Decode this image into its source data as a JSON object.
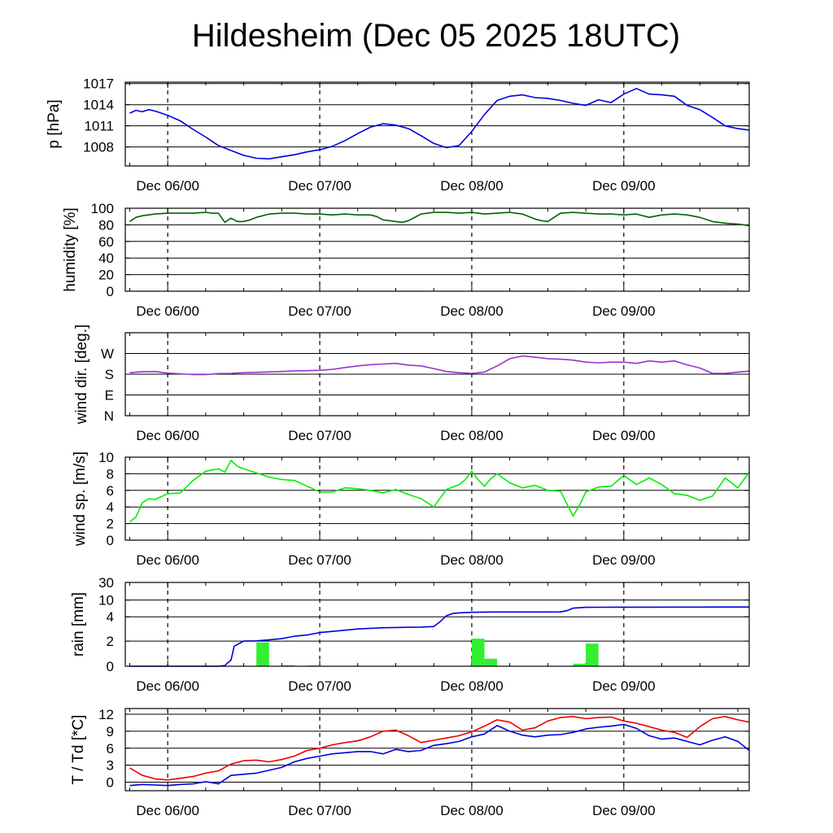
{
  "title": "Hildesheim (Dec 05 2025 18UTC)",
  "x_ticks": [
    "Dec 06/00",
    "Dec 07/00",
    "Dec 08/00",
    "Dec 09/00"
  ],
  "chart_data": [
    {
      "id": "pressure",
      "type": "line",
      "ylabel": "p [hPa]",
      "ylim": [
        1005.3,
        1017.2
      ],
      "yticks": [
        1008,
        1011,
        1014,
        1017
      ],
      "ytick_labels": [
        "1008",
        "1011",
        "1014",
        "1017"
      ],
      "x_hours": [
        -6,
        -5,
        -4,
        -3,
        -2,
        0,
        2,
        4,
        6,
        8,
        10,
        12,
        14,
        16,
        18,
        20,
        22,
        24,
        26,
        28,
        30,
        32,
        34,
        36,
        38,
        40,
        42,
        44,
        46,
        48,
        50,
        52,
        54,
        56,
        58,
        60,
        62,
        64,
        66,
        68,
        70,
        72,
        74,
        76,
        78,
        80,
        82,
        84,
        86,
        88,
        90,
        91.8
      ],
      "series": [
        {
          "name": "p",
          "color": "#0000dd",
          "values": [
            1012.8,
            1013.2,
            1013.0,
            1013.3,
            1013.1,
            1012.5,
            1011.7,
            1010.5,
            1009.4,
            1008.2,
            1007.5,
            1006.8,
            1006.4,
            1006.3,
            1006.6,
            1006.9,
            1007.3,
            1007.6,
            1008.1,
            1008.9,
            1009.9,
            1010.8,
            1011.3,
            1011.1,
            1010.6,
            1009.6,
            1008.5,
            1007.9,
            1008.2,
            1010.2,
            1012.6,
            1014.6,
            1015.2,
            1015.4,
            1015.0,
            1014.9,
            1014.6,
            1014.2,
            1013.9,
            1014.7,
            1014.3,
            1015.5,
            1016.3,
            1015.5,
            1015.4,
            1015.2,
            1013.9,
            1013.3,
            1012.2,
            1011.0,
            1010.6,
            1010.4
          ]
        }
      ]
    },
    {
      "id": "humidity",
      "type": "line",
      "ylabel": "humidity [%]",
      "ylim": [
        0,
        100
      ],
      "yticks": [
        0,
        20,
        40,
        60,
        80,
        100
      ],
      "ytick_labels": [
        "0",
        "20",
        "40",
        "60",
        "80",
        "100"
      ],
      "x_hours": [
        -6,
        -5,
        -4,
        -2,
        0,
        2,
        4,
        6,
        7,
        8,
        9,
        10,
        11,
        12,
        13,
        14,
        16,
        18,
        20,
        22,
        24,
        26,
        28,
        30,
        32,
        33,
        34,
        36,
        37,
        38,
        40,
        42,
        44,
        46,
        48,
        50,
        52,
        54,
        56,
        58,
        59,
        60,
        61,
        62,
        64,
        66,
        68,
        70,
        72,
        74,
        76,
        78,
        80,
        82,
        84,
        86,
        88,
        90,
        91.8
      ],
      "series": [
        {
          "name": "humidity",
          "color": "#006400",
          "values": [
            84,
            89,
            91,
            93,
            94,
            94,
            94,
            95,
            94,
            94,
            83,
            88,
            84,
            84,
            86,
            89,
            93,
            94,
            94,
            93,
            93,
            92,
            93,
            92,
            92,
            90,
            86,
            84,
            83,
            85,
            93,
            95,
            95,
            94,
            95,
            93,
            94,
            95,
            93,
            87,
            85,
            84,
            89,
            94,
            95,
            94,
            93,
            93,
            92,
            93,
            89,
            92,
            93,
            92,
            89,
            84,
            82,
            81,
            79
          ]
        }
      ]
    },
    {
      "id": "wind_dir",
      "type": "line",
      "ylabel": "wind dir. [deg.]",
      "ylim": [
        0,
        400
      ],
      "yticks": [
        0,
        100,
        200,
        300
      ],
      "ytick_labels": [
        "N",
        "E",
        "S",
        "W"
      ],
      "x_hours": [
        -6,
        -4,
        -2,
        0,
        2,
        4,
        6,
        8,
        10,
        12,
        14,
        16,
        18,
        20,
        22,
        24,
        26,
        28,
        30,
        32,
        34,
        36,
        38,
        40,
        42,
        44,
        46,
        48,
        50,
        52,
        54,
        56,
        58,
        60,
        62,
        64,
        66,
        68,
        70,
        72,
        74,
        76,
        78,
        80,
        82,
        84,
        86,
        88,
        90,
        91.8
      ],
      "series": [
        {
          "name": "wind direction",
          "color": "#9933cc",
          "values": [
            207,
            212,
            213,
            205,
            202,
            198,
            198,
            203,
            204,
            208,
            209,
            211,
            213,
            216,
            217,
            219,
            223,
            232,
            240,
            246,
            249,
            252,
            244,
            240,
            227,
            213,
            207,
            204,
            210,
            240,
            275,
            288,
            282,
            275,
            272,
            268,
            258,
            255,
            258,
            258,
            252,
            264,
            258,
            264,
            245,
            230,
            204,
            204,
            210,
            215
          ]
        }
      ]
    },
    {
      "id": "wind_speed",
      "type": "line",
      "ylabel": "wind sp. [m/s]",
      "ylim": [
        0,
        10
      ],
      "yticks": [
        0,
        2,
        4,
        6,
        8,
        10
      ],
      "ytick_labels": [
        "0",
        "2",
        "4",
        "6",
        "8",
        "10"
      ],
      "x_hours": [
        -6,
        -5,
        -4,
        -3,
        -2,
        0,
        2,
        4,
        6,
        8,
        9,
        10,
        11,
        12,
        14,
        16,
        18,
        20,
        22,
        24,
        26,
        28,
        30,
        32,
        34,
        36,
        38,
        40,
        42,
        44,
        46,
        47,
        48,
        49,
        50,
        51,
        52,
        54,
        56,
        58,
        60,
        62,
        64,
        65,
        66,
        68,
        70,
        72,
        74,
        76,
        78,
        80,
        82,
        84,
        86,
        88,
        90,
        91.8
      ],
      "series": [
        {
          "name": "wind speed",
          "color": "#00ee00",
          "values": [
            2.2,
            2.8,
            4.5,
            5.0,
            4.9,
            5.6,
            5.7,
            7.2,
            8.3,
            8.6,
            8.2,
            9.6,
            8.9,
            8.6,
            8.1,
            7.6,
            7.3,
            7.2,
            6.5,
            5.8,
            5.8,
            6.3,
            6.2,
            6.0,
            5.7,
            6.1,
            5.5,
            5.0,
            4.0,
            6.1,
            6.7,
            7.3,
            8.3,
            7.3,
            6.5,
            7.4,
            8.0,
            6.9,
            6.3,
            6.6,
            6.0,
            5.9,
            2.9,
            4.2,
            5.8,
            6.4,
            6.5,
            7.8,
            6.7,
            7.5,
            6.7,
            5.6,
            5.4,
            4.8,
            5.3,
            7.5,
            6.3,
            8.2
          ]
        }
      ]
    },
    {
      "id": "rain",
      "type": "bar+line",
      "ylabel": "rain [mm]",
      "ylim": [
        0,
        30
      ],
      "yticks": [
        0,
        2,
        4,
        10,
        30
      ],
      "ytick_labels": [
        "0",
        "2",
        "4",
        "10",
        "30"
      ],
      "scale": "piecewise: 0-4 linear, 4-10 and 10-30 compressed",
      "bars": {
        "color": "#33ee33",
        "x_start_hours": [
          4,
          14,
          16,
          18,
          20,
          22,
          42,
          46,
          48,
          50,
          52,
          62,
          64,
          66,
          68,
          88
        ],
        "values": [
          0.01,
          1.9,
          0.01,
          0.08,
          0.03,
          0.06,
          0.02,
          0.01,
          2.2,
          0.6,
          0.01,
          0.01,
          0.2,
          1.8,
          0.01,
          0.02
        ]
      },
      "x_hours": [
        -6,
        0,
        5,
        8,
        9,
        10,
        10.5,
        12,
        14,
        16,
        18,
        20,
        22,
        24,
        26,
        28,
        30,
        32,
        34,
        36,
        38,
        40,
        42,
        43,
        44,
        45,
        46,
        48,
        50,
        52,
        54,
        56,
        58,
        60,
        62,
        63,
        64,
        66,
        68,
        70,
        72,
        76,
        80,
        84,
        88,
        91.8
      ],
      "series": [
        {
          "name": "accumulated rain",
          "color": "#0000dd",
          "values": [
            0,
            0,
            0,
            0,
            0.05,
            0.5,
            1.6,
            2.0,
            2.02,
            2.1,
            2.2,
            2.4,
            2.5,
            2.7,
            2.8,
            2.9,
            3.0,
            3.05,
            3.1,
            3.12,
            3.14,
            3.15,
            3.2,
            3.6,
            4.4,
            5.2,
            5.4,
            5.6,
            5.7,
            5.72,
            5.73,
            5.73,
            5.73,
            5.73,
            5.75,
            6.2,
            7.1,
            7.4,
            7.42,
            7.44,
            7.45,
            7.46,
            7.47,
            7.48,
            7.49,
            7.5
          ]
        }
      ]
    },
    {
      "id": "temperature",
      "type": "line",
      "ylabel": "T / Td [*C]",
      "ylim": [
        -1.5,
        13
      ],
      "yticks": [
        0,
        3,
        6,
        9,
        12
      ],
      "ytick_labels": [
        "0",
        "3",
        "6",
        "9",
        "12"
      ],
      "x_hours": [
        -6,
        -4,
        -2,
        0,
        2,
        4,
        6,
        8,
        10,
        12,
        14,
        16,
        18,
        20,
        22,
        24,
        26,
        28,
        30,
        32,
        34,
        36,
        38,
        40,
        42,
        44,
        46,
        48,
        50,
        52,
        54,
        56,
        58,
        60,
        62,
        64,
        66,
        68,
        70,
        72,
        74,
        76,
        78,
        80,
        82,
        84,
        86,
        88,
        90,
        91.8
      ],
      "series": [
        {
          "name": "T",
          "color": "#ee0000",
          "values": [
            2.5,
            1.2,
            0.6,
            0.4,
            0.7,
            1.0,
            1.6,
            2.0,
            3.2,
            3.8,
            3.9,
            3.6,
            4.0,
            4.6,
            5.6,
            6.0,
            6.6,
            7.0,
            7.3,
            8.0,
            9.0,
            9.2,
            8.2,
            7.0,
            7.4,
            7.8,
            8.2,
            8.9,
            9.9,
            11.0,
            10.6,
            9.2,
            9.6,
            10.8,
            11.4,
            11.6,
            11.2,
            11.4,
            11.5,
            10.8,
            10.4,
            9.8,
            9.2,
            8.8,
            7.9,
            9.8,
            11.2,
            11.6,
            11.0,
            10.6
          ]
        },
        {
          "name": "Td",
          "color": "#0000dd",
          "values": [
            -0.6,
            -0.4,
            -0.5,
            -0.6,
            -0.4,
            -0.3,
            0.1,
            -0.3,
            1.2,
            1.4,
            1.6,
            2.1,
            2.6,
            3.6,
            4.2,
            4.6,
            5.0,
            5.2,
            5.4,
            5.4,
            5.0,
            5.8,
            5.4,
            5.6,
            6.5,
            6.8,
            7.2,
            8.0,
            8.5,
            10.0,
            9.0,
            8.3,
            8.0,
            8.3,
            8.4,
            8.8,
            9.4,
            9.7,
            9.9,
            10.2,
            9.5,
            8.2,
            7.6,
            7.8,
            7.2,
            6.6,
            7.4,
            8.0,
            7.2,
            5.6
          ]
        }
      ]
    }
  ]
}
